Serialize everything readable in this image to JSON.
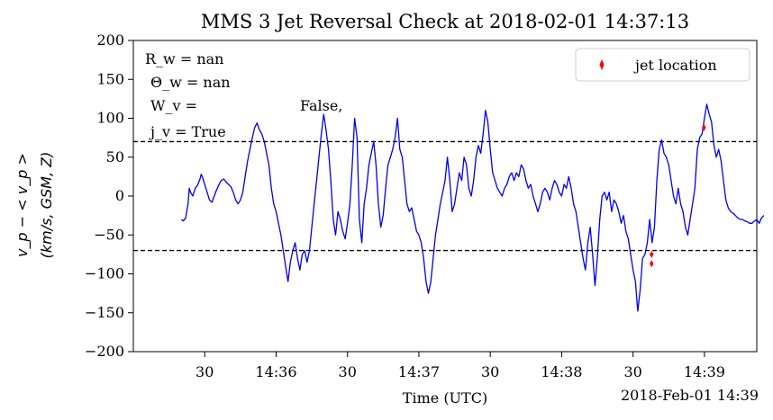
{
  "chart_data": {
    "type": "line",
    "title": "MMS 3 Jet Reversal Check at 2018-02-01 14:37:13",
    "xlabel": "Time (UTC)",
    "ylabel_line1": "v_p − < v_p >",
    "ylabel_line2": "(km/s, GSM, Z)",
    "x_offset_label": "2018-Feb-01 14:39",
    "ylim": [
      -200,
      200
    ],
    "xlim_seconds": [
      -30,
      232
    ],
    "y_ticks": [
      -200,
      -150,
      -100,
      -50,
      0,
      50,
      100,
      150,
      200
    ],
    "x_ticks": [
      {
        "t": 0,
        "label": "30"
      },
      {
        "t": 30,
        "label": "14:36"
      },
      {
        "t": 60,
        "label": "30"
      },
      {
        "t": 90,
        "label": "14:37"
      },
      {
        "t": 120,
        "label": "30"
      },
      {
        "t": 150,
        "label": "14:38"
      },
      {
        "t": 180,
        "label": "30"
      },
      {
        "t": 210,
        "label": "14:39"
      }
    ],
    "threshold_lines": [
      70,
      -70
    ],
    "annotation": {
      "line1": "R_w = nan",
      "line2": "Θ_w = nan",
      "line3": "W_v =",
      "line3_tail": "False,",
      "line4": "j_v = True"
    },
    "series": [
      {
        "color": "#0000ee",
        "points": [
          [
            -9.8,
            -30
          ],
          [
            -9,
            -32
          ],
          [
            -8,
            -28
          ],
          [
            -7,
            -10
          ],
          [
            -6.5,
            10
          ],
          [
            -6,
            5
          ],
          [
            -5,
            0
          ],
          [
            -4,
            10
          ],
          [
            -3,
            14
          ],
          [
            -2,
            22
          ],
          [
            -1.5,
            28
          ],
          [
            -1,
            25
          ],
          [
            0,
            15
          ],
          [
            1,
            5
          ],
          [
            2,
            -5
          ],
          [
            3,
            -8
          ],
          [
            4,
            0
          ],
          [
            5,
            8
          ],
          [
            6,
            15
          ],
          [
            7,
            20
          ],
          [
            8,
            22
          ],
          [
            9,
            18
          ],
          [
            10,
            15
          ],
          [
            11,
            12
          ],
          [
            12,
            5
          ],
          [
            13,
            -5
          ],
          [
            14,
            -10
          ],
          [
            15,
            -5
          ],
          [
            16,
            5
          ],
          [
            17,
            25
          ],
          [
            18,
            45
          ],
          [
            19,
            60
          ],
          [
            20,
            75
          ],
          [
            21,
            88
          ],
          [
            22,
            94
          ],
          [
            23,
            85
          ],
          [
            24,
            80
          ],
          [
            25,
            70
          ],
          [
            26,
            55
          ],
          [
            27,
            40
          ],
          [
            28,
            10
          ],
          [
            29,
            -10
          ],
          [
            30,
            -20
          ],
          [
            31,
            -35
          ],
          [
            32,
            -50
          ],
          [
            33,
            -70
          ],
          [
            34,
            -90
          ],
          [
            35,
            -110
          ],
          [
            36,
            -85
          ],
          [
            37,
            -70
          ],
          [
            38,
            -60
          ],
          [
            39,
            -80
          ],
          [
            40,
            -95
          ],
          [
            41,
            -75
          ],
          [
            42,
            -70
          ],
          [
            43,
            -85
          ],
          [
            44,
            -70
          ],
          [
            45,
            -40
          ],
          [
            46,
            -10
          ],
          [
            47,
            20
          ],
          [
            48,
            50
          ],
          [
            49,
            80
          ],
          [
            50,
            105
          ],
          [
            51,
            85
          ],
          [
            52,
            60
          ],
          [
            53,
            20
          ],
          [
            54,
            -30
          ],
          [
            55,
            -50
          ],
          [
            56,
            -20
          ],
          [
            57,
            -30
          ],
          [
            58,
            -45
          ],
          [
            59,
            -55
          ],
          [
            60,
            -35
          ],
          [
            61,
            -10
          ],
          [
            62,
            40
          ],
          [
            63,
            100
          ],
          [
            64,
            75
          ],
          [
            65,
            -30
          ],
          [
            66,
            -60
          ],
          [
            67,
            -10
          ],
          [
            68,
            10
          ],
          [
            69,
            40
          ],
          [
            70,
            55
          ],
          [
            71,
            70
          ],
          [
            72,
            40
          ],
          [
            73,
            -10
          ],
          [
            74,
            -40
          ],
          [
            75,
            -25
          ],
          [
            76,
            10
          ],
          [
            77,
            40
          ],
          [
            78,
            50
          ],
          [
            79,
            60
          ],
          [
            80,
            75
          ],
          [
            81,
            100
          ],
          [
            82,
            60
          ],
          [
            83,
            50
          ],
          [
            84,
            20
          ],
          [
            85,
            -10
          ],
          [
            86,
            -20
          ],
          [
            87,
            -15
          ],
          [
            88,
            -30
          ],
          [
            89,
            -45
          ],
          [
            90,
            -50
          ],
          [
            91,
            -60
          ],
          [
            92,
            -80
          ],
          [
            93,
            -110
          ],
          [
            94,
            -125
          ],
          [
            95,
            -110
          ],
          [
            96,
            -80
          ],
          [
            97,
            -50
          ],
          [
            98,
            -30
          ],
          [
            99,
            -10
          ],
          [
            100,
            5
          ],
          [
            101,
            20
          ],
          [
            102,
            50
          ],
          [
            103,
            20
          ],
          [
            104,
            -20
          ],
          [
            105,
            -10
          ],
          [
            106,
            10
          ],
          [
            107,
            30
          ],
          [
            108,
            20
          ],
          [
            109,
            50
          ],
          [
            110,
            40
          ],
          [
            111,
            10
          ],
          [
            112,
            0
          ],
          [
            113,
            20
          ],
          [
            114,
            50
          ],
          [
            115,
            65
          ],
          [
            116,
            55
          ],
          [
            117,
            80
          ],
          [
            118,
            110
          ],
          [
            119,
            95
          ],
          [
            120,
            60
          ],
          [
            121,
            30
          ],
          [
            122,
            20
          ],
          [
            123,
            10
          ],
          [
            124,
            5
          ],
          [
            125,
            0
          ],
          [
            126,
            10
          ],
          [
            127,
            15
          ],
          [
            128,
            25
          ],
          [
            129,
            30
          ],
          [
            130,
            20
          ],
          [
            131,
            30
          ],
          [
            132,
            25
          ],
          [
            133,
            40
          ],
          [
            134,
            35
          ],
          [
            135,
            20
          ],
          [
            136,
            10
          ],
          [
            137,
            15
          ],
          [
            138,
            0
          ],
          [
            139,
            -10
          ],
          [
            140,
            -20
          ],
          [
            141,
            -10
          ],
          [
            142,
            5
          ],
          [
            143,
            10
          ],
          [
            144,
            5
          ],
          [
            145,
            -5
          ],
          [
            146,
            10
          ],
          [
            147,
            20
          ],
          [
            148,
            15
          ],
          [
            149,
            5
          ],
          [
            150,
            0
          ],
          [
            151,
            15
          ],
          [
            152,
            10
          ],
          [
            153,
            25
          ],
          [
            154,
            10
          ],
          [
            155,
            -10
          ],
          [
            156,
            -20
          ],
          [
            157,
            -40
          ],
          [
            158,
            -60
          ],
          [
            159,
            -80
          ],
          [
            160,
            -95
          ],
          [
            161,
            -60
          ],
          [
            162,
            -40
          ],
          [
            163,
            -75
          ],
          [
            164,
            -115
          ],
          [
            165,
            -80
          ],
          [
            166,
            -30
          ],
          [
            167,
            0
          ],
          [
            168,
            5
          ],
          [
            169,
            -5
          ],
          [
            170,
            5
          ],
          [
            171,
            -20
          ],
          [
            172,
            -5
          ],
          [
            173,
            -10
          ],
          [
            174,
            -20
          ],
          [
            175,
            -35
          ],
          [
            176,
            -25
          ],
          [
            177,
            -45
          ],
          [
            178,
            -55
          ],
          [
            179,
            -75
          ],
          [
            180,
            -95
          ],
          [
            181,
            -110
          ],
          [
            182,
            -148
          ],
          [
            183,
            -120
          ],
          [
            184,
            -80
          ],
          [
            185,
            -75
          ],
          [
            186,
            -60
          ],
          [
            187,
            -30
          ],
          [
            188,
            -60
          ],
          [
            189,
            -40
          ],
          [
            190,
            20
          ],
          [
            191,
            60
          ],
          [
            192,
            72
          ],
          [
            193,
            55
          ],
          [
            194,
            50
          ],
          [
            195,
            40
          ],
          [
            196,
            20
          ],
          [
            197,
            0
          ],
          [
            198,
            -10
          ],
          [
            199,
            10
          ],
          [
            200,
            -10
          ],
          [
            201,
            -20
          ],
          [
            202,
            -40
          ],
          [
            203,
            -50
          ],
          [
            204,
            -30
          ],
          [
            205,
            -10
          ],
          [
            206,
            10
          ],
          [
            207,
            60
          ],
          [
            208,
            75
          ],
          [
            209,
            80
          ],
          [
            210,
            100
          ],
          [
            211,
            118
          ],
          [
            212,
            105
          ],
          [
            213,
            95
          ],
          [
            214,
            65
          ],
          [
            215,
            50
          ],
          [
            216,
            60
          ],
          [
            217,
            45
          ],
          [
            218,
            20
          ],
          [
            219,
            -5
          ],
          [
            220,
            -15
          ],
          [
            221,
            -20
          ],
          [
            222,
            -22
          ],
          [
            223,
            -25
          ],
          [
            224,
            -28
          ],
          [
            225,
            -30
          ],
          [
            226,
            -30
          ],
          [
            227,
            -32
          ],
          [
            228,
            -33
          ],
          [
            229,
            -35
          ],
          [
            230,
            -35
          ],
          [
            231,
            -32
          ],
          [
            232,
            -30
          ],
          [
            233,
            -35
          ],
          [
            234,
            -28
          ],
          [
            235,
            -25
          ]
        ]
      }
    ],
    "jet_markers": [
      [
        187.8,
        -75
      ],
      [
        187.8,
        -87
      ],
      [
        209.8,
        88
      ]
    ],
    "legend": {
      "placement": "top-right",
      "entries": [
        {
          "label": "jet location",
          "color": "#ff0000"
        }
      ]
    },
    "grid": false
  }
}
